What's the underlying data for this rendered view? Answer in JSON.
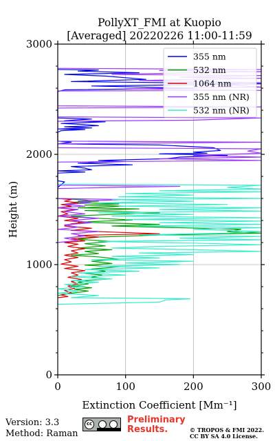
{
  "chart_data": {
    "type": "line",
    "title_line1": "PollyXT_FMI at Kuopio",
    "title_line2": "[Averaged] 20220226 11:00-11:59",
    "xlabel": "Extinction Coefficient [Mm⁻¹]",
    "ylabel": "Height (m)",
    "xlim": [
      0,
      300
    ],
    "ylim": [
      0,
      3000
    ],
    "x_ticks": [
      0,
      100,
      200,
      300
    ],
    "y_ticks": [
      0,
      1000,
      2000,
      3000
    ],
    "grid": true,
    "legend_position": "top-right",
    "series": [
      {
        "name": "355 nm",
        "color": "#0000ee",
        "points": [
          [
            0,
            2770
          ],
          [
            60,
            2765
          ],
          [
            30,
            2755
          ],
          [
            120,
            2740
          ],
          [
            10,
            2725
          ],
          [
            70,
            2710
          ],
          [
            130,
            2680
          ],
          [
            20,
            2660
          ],
          [
            300,
            2640
          ],
          [
            50,
            2620
          ],
          [
            200,
            2600
          ],
          [
            10,
            2585
          ],
          [
            0,
            2570
          ],
          [
            0,
            2330
          ],
          [
            50,
            2320
          ],
          [
            10,
            2305
          ],
          [
            70,
            2295
          ],
          [
            5,
            2280
          ],
          [
            40,
            2270
          ],
          [
            60,
            2260
          ],
          [
            10,
            2250
          ],
          [
            50,
            2240
          ],
          [
            0,
            2230
          ],
          [
            40,
            2225
          ],
          [
            5,
            2215
          ],
          [
            0,
            2200
          ],
          [
            0,
            2120
          ],
          [
            20,
            2110
          ],
          [
            0,
            2095
          ],
          [
            150,
            2085
          ],
          [
            230,
            2060
          ],
          [
            240,
            2035
          ],
          [
            200,
            2020
          ],
          [
            220,
            2010
          ],
          [
            150,
            2005
          ],
          [
            250,
            1990
          ],
          [
            180,
            1975
          ],
          [
            160,
            1960
          ],
          [
            60,
            1945
          ],
          [
            100,
            1935
          ],
          [
            30,
            1920
          ],
          [
            110,
            1905
          ],
          [
            20,
            1890
          ],
          [
            40,
            1875
          ],
          [
            50,
            1860
          ],
          [
            0,
            1850
          ],
          [
            40,
            1840
          ],
          [
            0,
            1830
          ],
          [
            0,
            1760
          ],
          [
            10,
            1750
          ],
          [
            0,
            1700
          ]
        ]
      },
      {
        "name": "532 nm",
        "color": "#00a000",
        "points": [
          [
            0,
            1600
          ],
          [
            30,
            1590
          ],
          [
            60,
            1575
          ],
          [
            20,
            1565
          ],
          [
            90,
            1550
          ],
          [
            40,
            1540
          ],
          [
            100,
            1530
          ],
          [
            30,
            1515
          ],
          [
            120,
            1505
          ],
          [
            40,
            1490
          ],
          [
            150,
            1470
          ],
          [
            80,
            1455
          ],
          [
            20,
            1440
          ],
          [
            60,
            1420
          ],
          [
            110,
            1405
          ],
          [
            30,
            1385
          ],
          [
            150,
            1365
          ],
          [
            80,
            1350
          ],
          [
            270,
            1320
          ],
          [
            250,
            1300
          ],
          [
            300,
            1285
          ],
          [
            160,
            1270
          ],
          [
            60,
            1250
          ],
          [
            30,
            1230
          ],
          [
            80,
            1210
          ],
          [
            40,
            1190
          ],
          [
            70,
            1170
          ],
          [
            30,
            1150
          ],
          [
            80,
            1135
          ],
          [
            40,
            1120
          ],
          [
            60,
            1100
          ],
          [
            20,
            1085
          ],
          [
            60,
            1070
          ],
          [
            90,
            1050
          ],
          [
            50,
            1030
          ],
          [
            80,
            1010
          ],
          [
            40,
            995
          ],
          [
            90,
            980
          ],
          [
            50,
            960
          ],
          [
            70,
            940
          ],
          [
            40,
            920
          ],
          [
            65,
            905
          ],
          [
            50,
            885
          ],
          [
            75,
            870
          ],
          [
            45,
            855
          ],
          [
            30,
            840
          ],
          [
            45,
            825
          ],
          [
            20,
            805
          ],
          [
            50,
            790
          ],
          [
            25,
            775
          ],
          [
            45,
            760
          ],
          [
            20,
            740
          ],
          [
            0,
            720
          ]
        ]
      },
      {
        "name": "1064 nm",
        "color": "#dd0000",
        "points": [
          [
            0,
            1600
          ],
          [
            20,
            1590
          ],
          [
            10,
            1575
          ],
          [
            30,
            1560
          ],
          [
            5,
            1545
          ],
          [
            20,
            1530
          ],
          [
            0,
            1515
          ],
          [
            25,
            1500
          ],
          [
            5,
            1480
          ],
          [
            15,
            1460
          ],
          [
            0,
            1440
          ],
          [
            30,
            1420
          ],
          [
            10,
            1400
          ],
          [
            40,
            1385
          ],
          [
            20,
            1370
          ],
          [
            10,
            1350
          ],
          [
            50,
            1330
          ],
          [
            20,
            1310
          ],
          [
            80,
            1295
          ],
          [
            150,
            1280
          ],
          [
            30,
            1265
          ],
          [
            60,
            1250
          ],
          [
            20,
            1235
          ],
          [
            40,
            1215
          ],
          [
            10,
            1200
          ],
          [
            30,
            1185
          ],
          [
            15,
            1165
          ],
          [
            40,
            1145
          ],
          [
            20,
            1125
          ],
          [
            30,
            1105
          ],
          [
            10,
            1085
          ],
          [
            30,
            1065
          ],
          [
            10,
            1045
          ],
          [
            20,
            1025
          ],
          [
            5,
            1005
          ],
          [
            30,
            985
          ],
          [
            10,
            965
          ],
          [
            40,
            945
          ],
          [
            20,
            925
          ],
          [
            30,
            905
          ],
          [
            15,
            885
          ],
          [
            35,
            865
          ],
          [
            20,
            845
          ],
          [
            30,
            825
          ],
          [
            15,
            805
          ],
          [
            25,
            785
          ],
          [
            10,
            765
          ],
          [
            20,
            745
          ],
          [
            5,
            725
          ],
          [
            15,
            710
          ],
          [
            0,
            700
          ]
        ]
      },
      {
        "name": "355 nm (NR)",
        "color": "#9933ff",
        "points": [
          [
            0,
            2780
          ],
          [
            300,
            2770
          ],
          [
            150,
            2760
          ],
          [
            300,
            2750
          ],
          [
            200,
            2740
          ],
          [
            80,
            2725
          ],
          [
            300,
            2715
          ],
          [
            180,
            2700
          ],
          [
            300,
            2690
          ],
          [
            120,
            2670
          ],
          [
            300,
            2650
          ],
          [
            250,
            2630
          ],
          [
            300,
            2610
          ],
          [
            100,
            2595
          ],
          [
            300,
            2580
          ],
          [
            0,
            2575
          ],
          [
            0,
            2440
          ],
          [
            300,
            2430
          ],
          [
            0,
            2420
          ],
          [
            0,
            2340
          ],
          [
            300,
            2330
          ],
          [
            200,
            2310
          ],
          [
            0,
            2300
          ],
          [
            0,
            2120
          ],
          [
            300,
            2110
          ],
          [
            0,
            2095
          ],
          [
            0,
            2060
          ],
          [
            300,
            2050
          ],
          [
            280,
            2030
          ],
          [
            300,
            2010
          ],
          [
            200,
            1990
          ],
          [
            300,
            1975
          ],
          [
            150,
            1960
          ],
          [
            300,
            1945
          ],
          [
            0,
            1930
          ],
          [
            0,
            1720
          ],
          [
            180,
            1710
          ],
          [
            80,
            1700
          ],
          [
            0,
            1690
          ],
          [
            0,
            1600
          ],
          [
            100,
            1590
          ],
          [
            30,
            1575
          ],
          [
            50,
            1560
          ],
          [
            10,
            1545
          ],
          [
            40,
            1530
          ],
          [
            0,
            1515
          ],
          [
            30,
            1500
          ],
          [
            10,
            1480
          ],
          [
            40,
            1460
          ],
          [
            0,
            1440
          ],
          [
            60,
            1420
          ],
          [
            20,
            1400
          ],
          [
            50,
            1380
          ],
          [
            10,
            1360
          ],
          [
            30,
            1340
          ],
          [
            0,
            1320
          ],
          [
            60,
            1300
          ],
          [
            20,
            1280
          ],
          [
            40,
            1260
          ],
          [
            10,
            1240
          ],
          [
            30,
            1220
          ],
          [
            0,
            1200
          ]
        ]
      },
      {
        "name": "532 nm (NR)",
        "color": "#33eecc",
        "points": [
          [
            0,
            1730
          ],
          [
            300,
            1720
          ],
          [
            250,
            1700
          ],
          [
            300,
            1685
          ],
          [
            150,
            1670
          ],
          [
            300,
            1660
          ],
          [
            100,
            1645
          ],
          [
            200,
            1630
          ],
          [
            90,
            1615
          ],
          [
            300,
            1600
          ],
          [
            80,
            1590
          ],
          [
            200,
            1575
          ],
          [
            60,
            1560
          ],
          [
            250,
            1545
          ],
          [
            90,
            1530
          ],
          [
            300,
            1515
          ],
          [
            150,
            1500
          ],
          [
            300,
            1485
          ],
          [
            60,
            1470
          ],
          [
            200,
            1455
          ],
          [
            80,
            1440
          ],
          [
            300,
            1425
          ],
          [
            100,
            1410
          ],
          [
            300,
            1395
          ],
          [
            150,
            1380
          ],
          [
            300,
            1365
          ],
          [
            120,
            1350
          ],
          [
            300,
            1335
          ],
          [
            200,
            1320
          ],
          [
            300,
            1300
          ],
          [
            250,
            1285
          ],
          [
            120,
            1270
          ],
          [
            300,
            1255
          ],
          [
            180,
            1240
          ],
          [
            300,
            1225
          ],
          [
            60,
            1210
          ],
          [
            200,
            1195
          ],
          [
            300,
            1180
          ],
          [
            150,
            1165
          ],
          [
            80,
            1150
          ],
          [
            200,
            1135
          ],
          [
            300,
            1120
          ],
          [
            120,
            1105
          ],
          [
            200,
            1090
          ],
          [
            80,
            1075
          ],
          [
            150,
            1060
          ],
          [
            50,
            1045
          ],
          [
            200,
            1030
          ],
          [
            100,
            1015
          ],
          [
            180,
            1000
          ],
          [
            60,
            985
          ],
          [
            150,
            970
          ],
          [
            40,
            955
          ],
          [
            120,
            940
          ],
          [
            30,
            925
          ],
          [
            100,
            905
          ],
          [
            20,
            890
          ],
          [
            80,
            870
          ],
          [
            20,
            855
          ],
          [
            60,
            840
          ],
          [
            10,
            820
          ],
          [
            40,
            800
          ],
          [
            0,
            780
          ],
          [
            30,
            760
          ],
          [
            0,
            740
          ],
          [
            60,
            720
          ],
          [
            20,
            700
          ],
          [
            195,
            690
          ],
          [
            160,
            680
          ],
          [
            150,
            660
          ],
          [
            0,
            640
          ]
        ]
      }
    ]
  },
  "footer": {
    "version": "Version: 3.3",
    "method": "Method: Raman",
    "preliminary_line1": "Preliminary",
    "preliminary_line2": "Results.",
    "copyright_line1": "© TROPOS & FMI 2022.",
    "copyright_line2": "CC BY SA 4.0 License.",
    "cc_icon": "cc-by-sa-license-icon"
  }
}
